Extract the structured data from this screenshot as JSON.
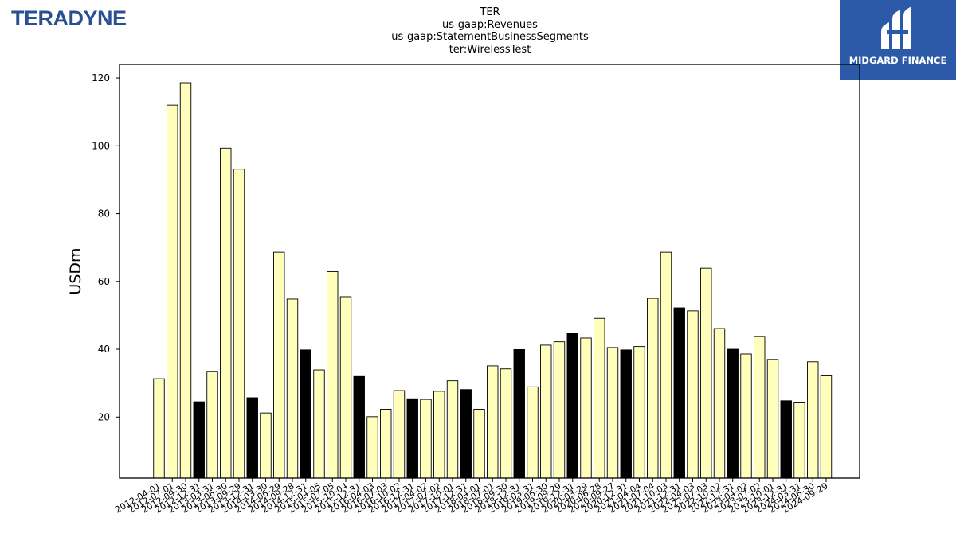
{
  "header": {
    "left_logo_text": "TERADYNE",
    "right_logo_text": "MIDGARD FINANCE",
    "title_lines": [
      "TER",
      "us-gaap:Revenues",
      "us-gaap:StatementBusinessSegments",
      "ter:WirelessTest"
    ]
  },
  "colors": {
    "bar_quarter": "#ffffbb",
    "bar_year_end": "#000000",
    "bar_edge": "#000000",
    "logo_left": "#2a4f92",
    "logo_right_bg": "#2d5aa8"
  },
  "chart_data": {
    "type": "bar",
    "ylabel": "USDm",
    "xlabel": "",
    "ylim": [
      2,
      124
    ],
    "yticks": [
      20,
      40,
      60,
      80,
      100,
      120
    ],
    "grid": false,
    "legend": "none",
    "categories": [
      "2012-04-01",
      "2012-07-01",
      "2012-09-30",
      "2012-12-31",
      "2013-03-31",
      "2013-06-30",
      "2013-09-29",
      "2013-12-31",
      "2014-03-30",
      "2014-06-29",
      "2014-09-28",
      "2014-12-31",
      "2015-04-05",
      "2015-07-05",
      "2015-10-04",
      "2015-12-31",
      "2016-04-03",
      "2016-07-03",
      "2016-10-02",
      "2016-12-31",
      "2017-04-02",
      "2017-07-02",
      "2017-10-01",
      "2017-12-31",
      "2018-04-01",
      "2018-07-01",
      "2018-09-30",
      "2018-12-31",
      "2019-03-31",
      "2019-06-30",
      "2019-09-29",
      "2019-12-31",
      "2020-03-29",
      "2020-06-28",
      "2020-09-27",
      "2020-12-31",
      "2021-04-04",
      "2021-07-04",
      "2021-10-03",
      "2021-12-31",
      "2022-04-03",
      "2022-07-03",
      "2022-10-02",
      "2022-12-31",
      "2023-04-02",
      "2023-07-02",
      "2023-10-01",
      "2023-12-31",
      "2024-03-31",
      "2024-06-30",
      "2024-09-29"
    ],
    "values": [
      31.3,
      112,
      118.6,
      24.5,
      33.5,
      99.3,
      93.1,
      25.7,
      21.2,
      68.6,
      54.8,
      39.8,
      33.9,
      62.9,
      55.5,
      32.2,
      20.1,
      22.3,
      27.8,
      25.4,
      25.2,
      27.6,
      30.7,
      28.1,
      22.3,
      35.1,
      34.2,
      39.9,
      28.9,
      41.2,
      42.2,
      44.8,
      43.3,
      49.1,
      40.5,
      39.8,
      40.8,
      55.0,
      68.6,
      52.2,
      51.3,
      63.9,
      46.1,
      40.0,
      38.6,
      43.8,
      37.0,
      24.8,
      24.4,
      36.3,
      32.4
    ],
    "year_end_flags": [
      false,
      false,
      false,
      true,
      false,
      false,
      false,
      true,
      false,
      false,
      false,
      true,
      false,
      false,
      false,
      true,
      false,
      false,
      false,
      true,
      false,
      false,
      false,
      true,
      false,
      false,
      false,
      true,
      false,
      false,
      false,
      true,
      false,
      false,
      false,
      true,
      false,
      false,
      false,
      true,
      false,
      false,
      false,
      true,
      false,
      false,
      false,
      true,
      false,
      false,
      false
    ]
  }
}
